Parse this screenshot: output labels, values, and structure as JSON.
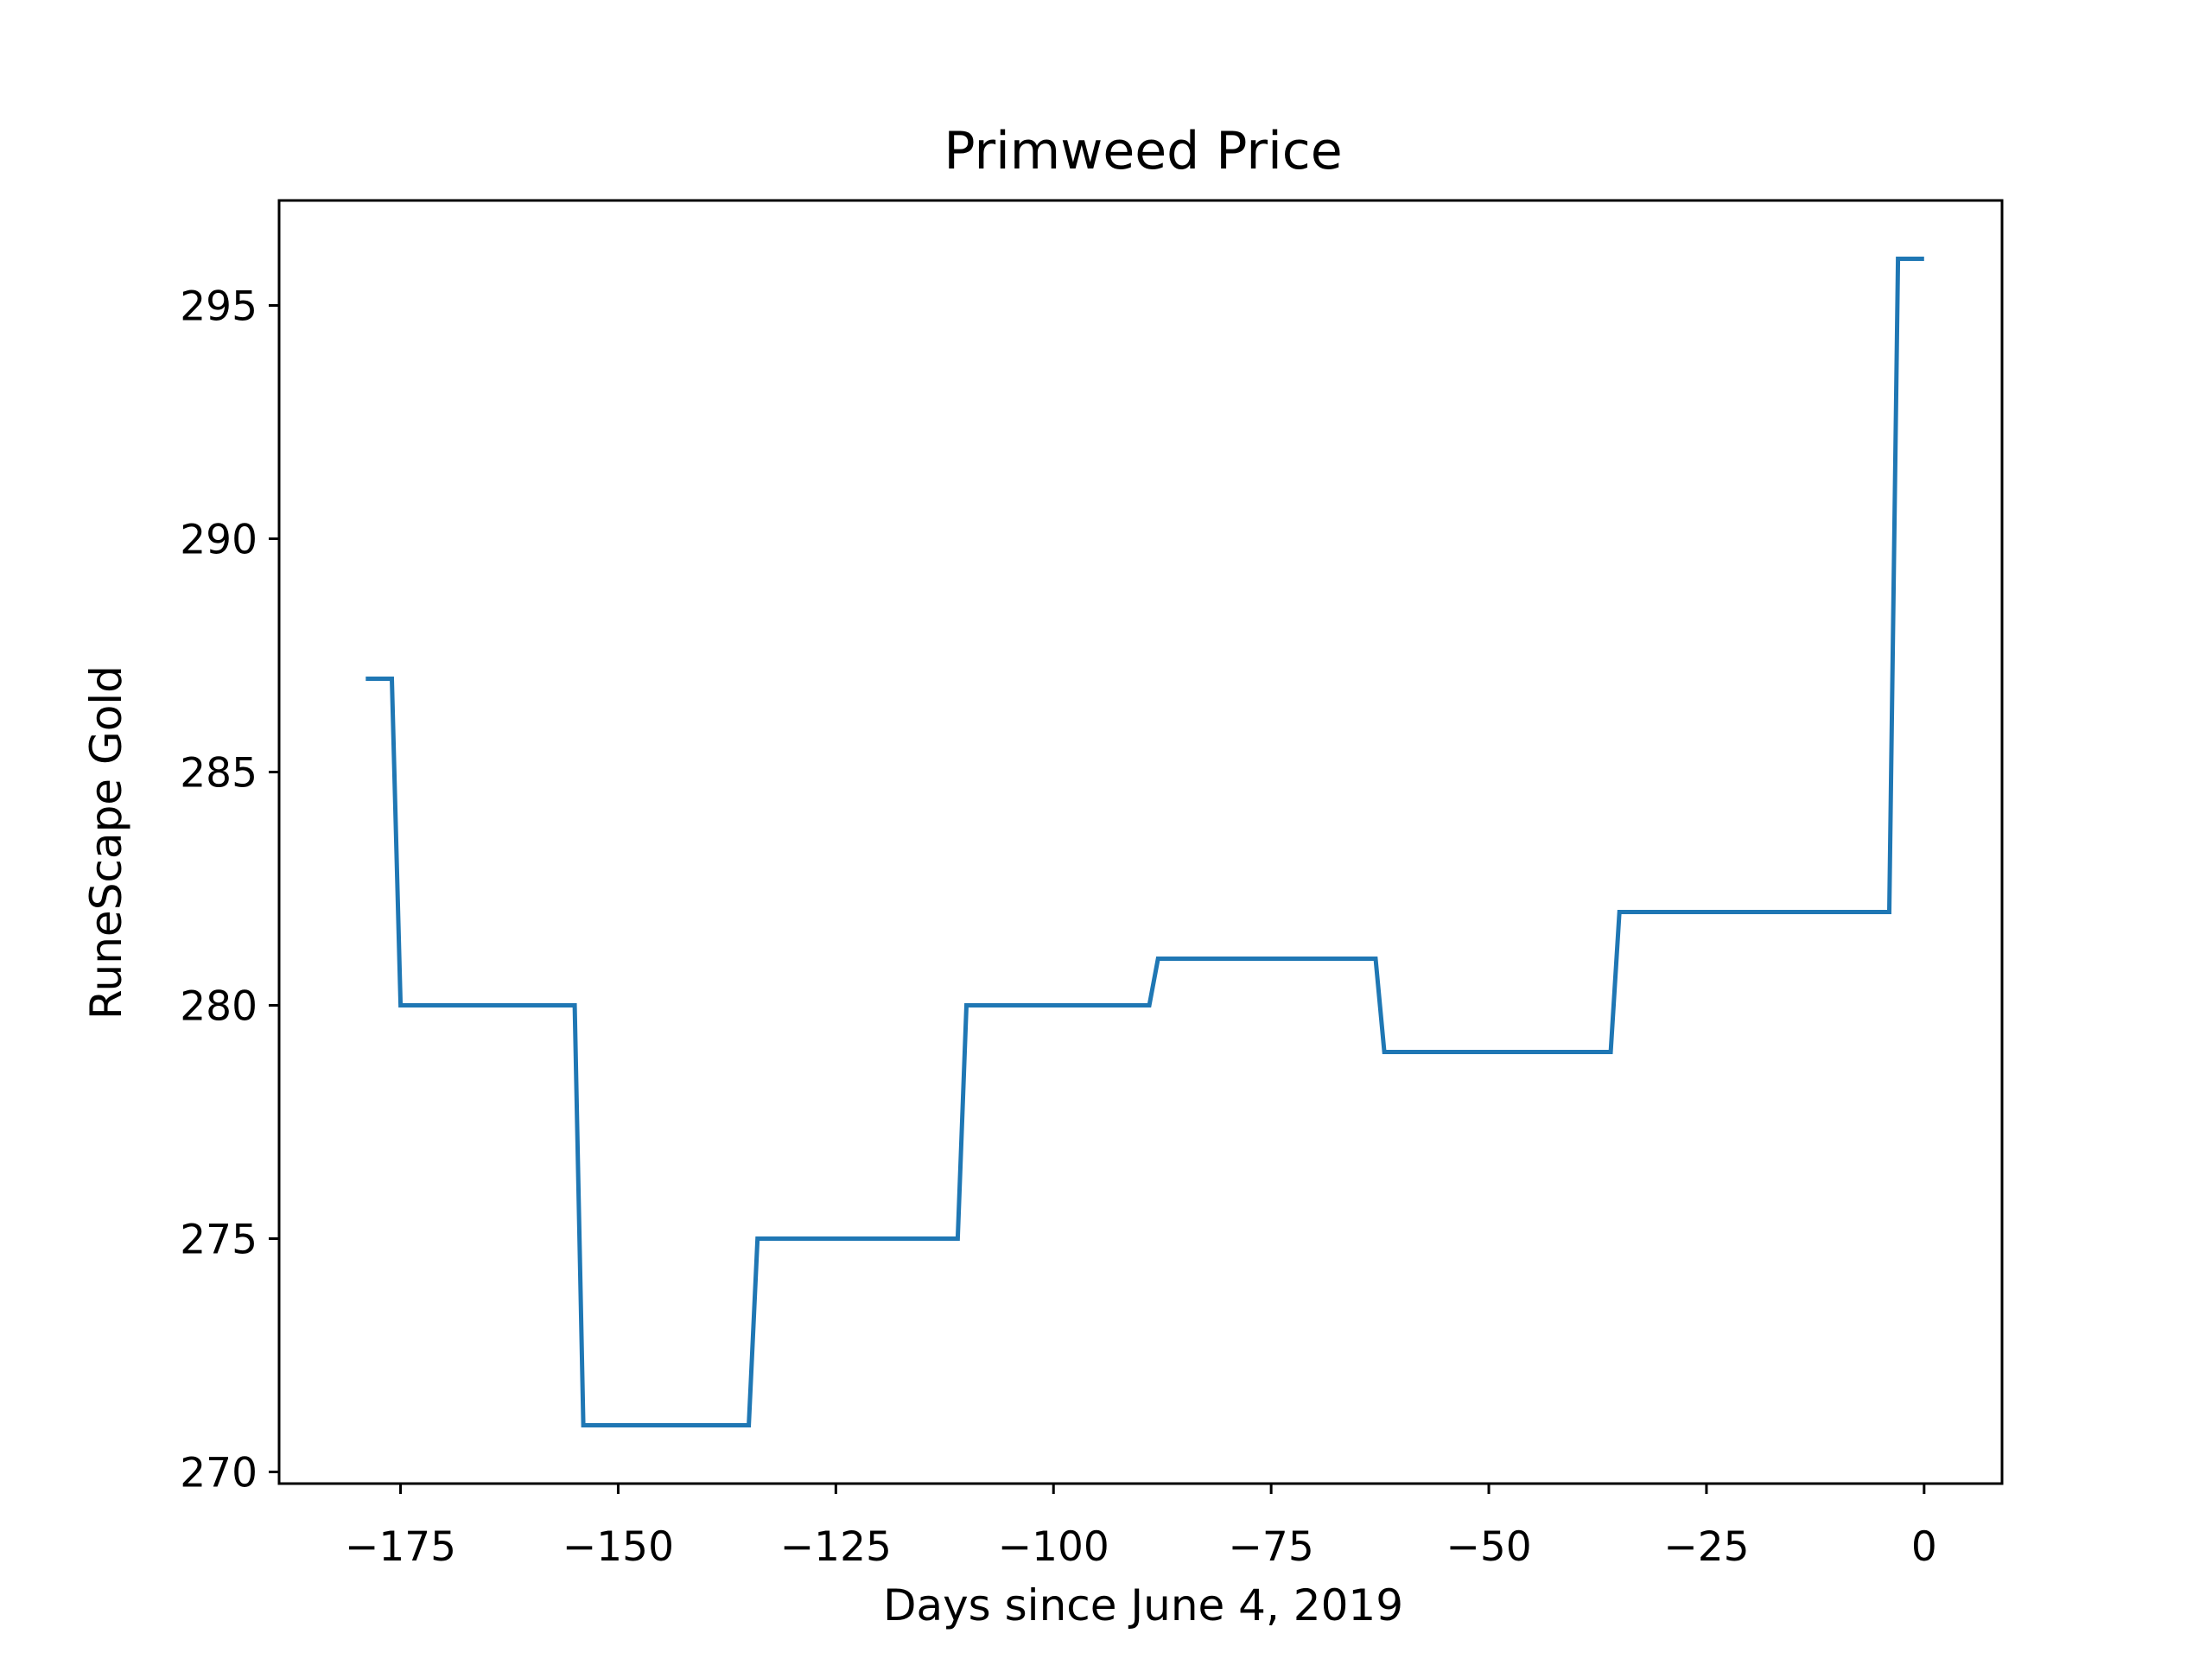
{
  "chart_data": {
    "type": "line",
    "title": "Primweed Price",
    "xlabel": "Days since June 4, 2019",
    "ylabel": "RuneScape Gold",
    "xlim": [
      -188.95,
      8.95
    ],
    "ylim": [
      269.75,
      297.25
    ],
    "xticks": [
      -175,
      -150,
      -125,
      -100,
      -75,
      -50,
      -25,
      0
    ],
    "xtick_labels": [
      "−175",
      "−150",
      "−125",
      "−100",
      "−75",
      "−50",
      "−25",
      "0"
    ],
    "yticks": [
      270,
      275,
      280,
      285,
      290,
      295
    ],
    "ytick_labels": [
      "270",
      "275",
      "280",
      "285",
      "290",
      "295"
    ],
    "grid": false,
    "series": [
      {
        "color": "#1f77b4",
        "x": [
          -179,
          -176,
          -175,
          -155,
          -154,
          -135,
          -134,
          -111,
          -110,
          -89,
          -88,
          -63,
          -62,
          -36,
          -35,
          -4,
          -3,
          0
        ],
        "y": [
          287,
          287,
          280,
          280,
          271,
          271,
          275,
          275,
          280,
          280,
          281,
          281,
          279,
          279,
          282,
          282,
          296,
          296
        ]
      }
    ]
  }
}
